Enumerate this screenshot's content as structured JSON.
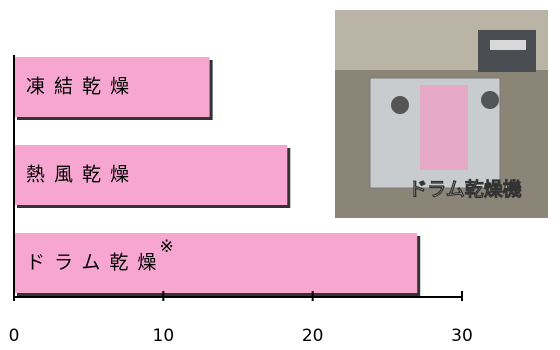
{
  "chart_data": {
    "type": "barh",
    "categories": [
      "凍結乾燥",
      "熱風乾燥",
      "ドラム乾燥"
    ],
    "values": [
      13.1,
      18.3,
      27
    ],
    "color": "#f7a6d2",
    "note_mark": "※",
    "xlim": [
      0,
      30
    ],
    "xticks": [
      0,
      10,
      20,
      30
    ]
  },
  "photo": {
    "caption": "ドラム乾燥機"
  }
}
